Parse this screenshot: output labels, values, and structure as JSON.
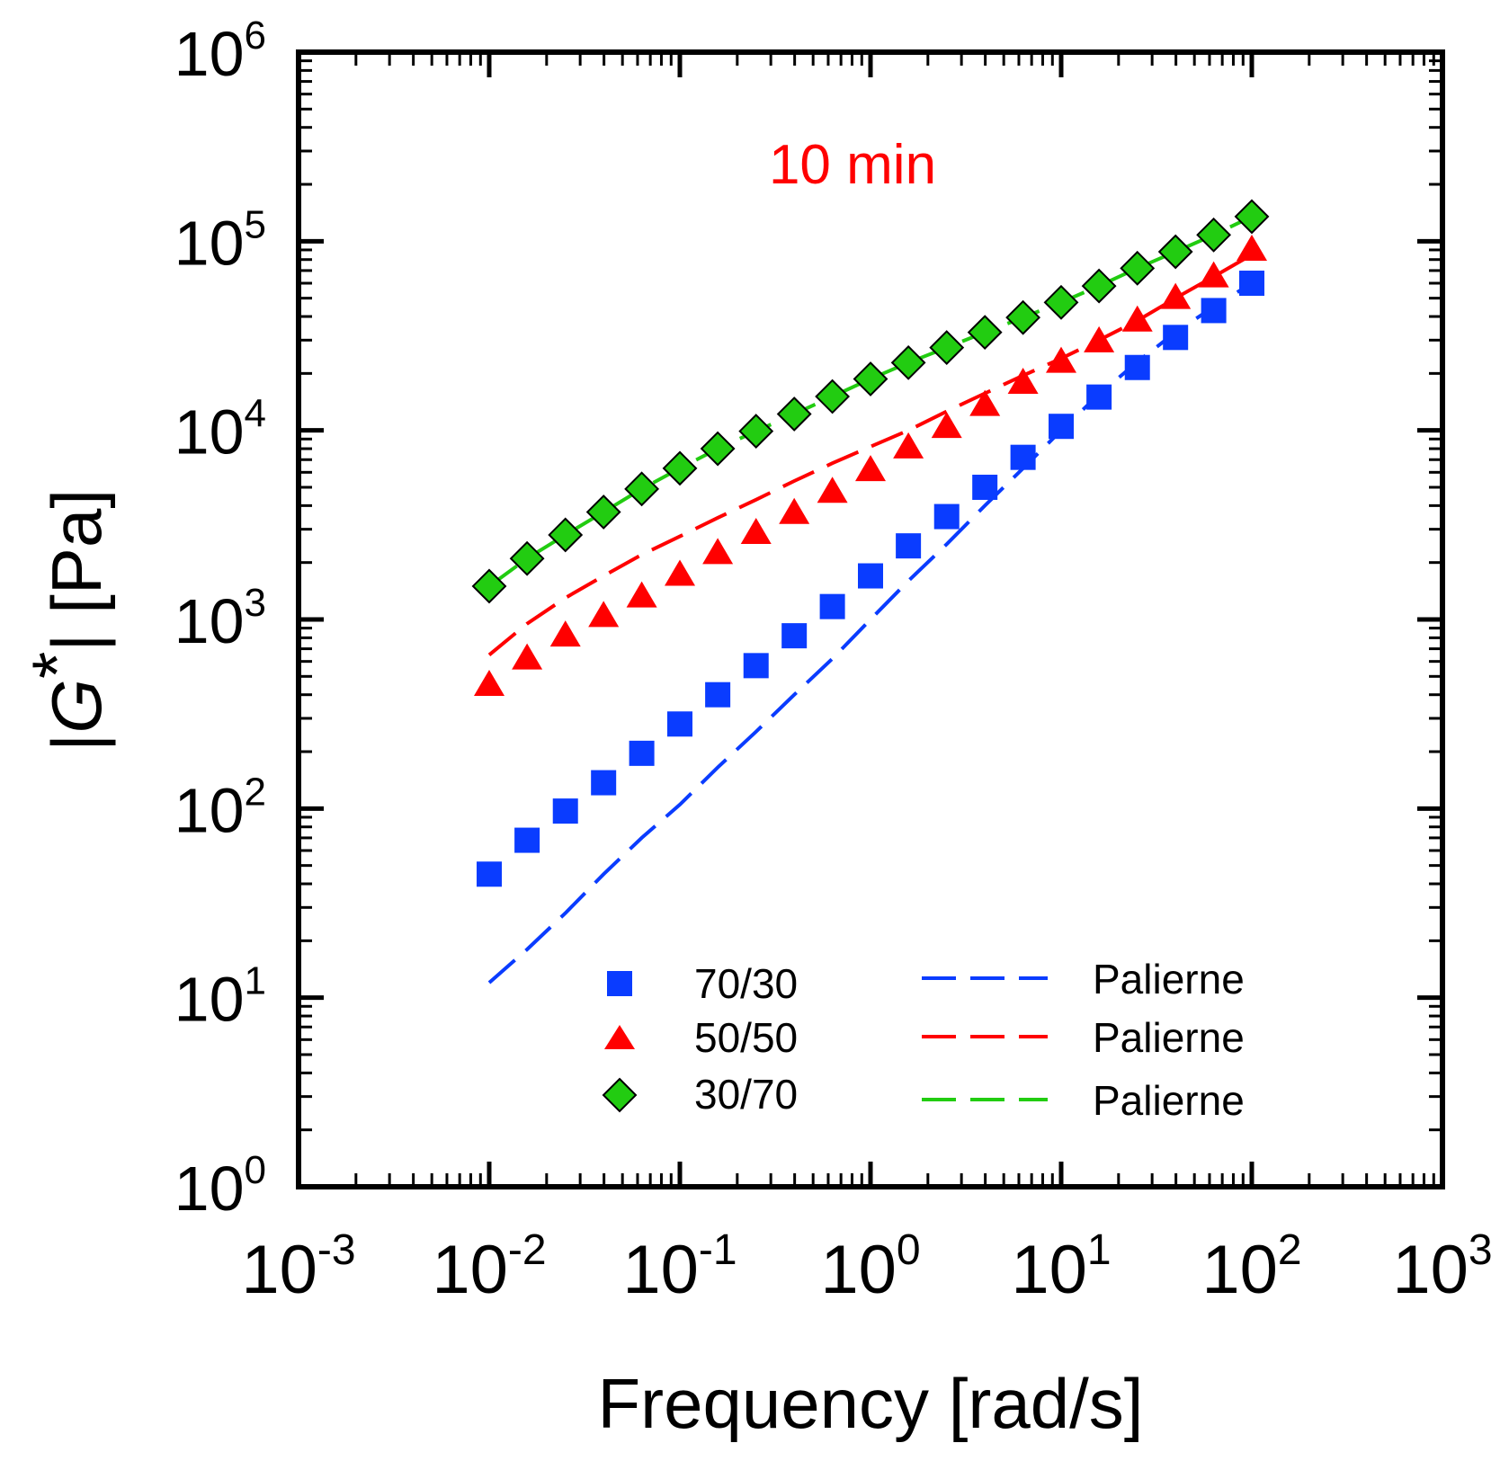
{
  "chart_data": {
    "type": "scatter",
    "title": "",
    "annotation": "10 min",
    "annotation_color": "#ff0000",
    "xlabel": "Frequency [rad/s]",
    "ylabel_prefix": "|",
    "ylabel_symbol": "G",
    "ylabel_star": "*",
    "ylabel_suffix": "| [Pa]",
    "x_scale": "log",
    "y_scale": "log",
    "xlim": [
      0.001,
      1000
    ],
    "ylim": [
      1,
      1000000
    ],
    "x_tick_labels": [
      {
        "base": "10",
        "exp": "-3"
      },
      {
        "base": "10",
        "exp": "-2"
      },
      {
        "base": "10",
        "exp": "-1"
      },
      {
        "base": "10",
        "exp": "0"
      },
      {
        "base": "10",
        "exp": "1"
      },
      {
        "base": "10",
        "exp": "2"
      },
      {
        "base": "10",
        "exp": "3"
      }
    ],
    "y_tick_labels": [
      {
        "base": "10",
        "exp": "0"
      },
      {
        "base": "10",
        "exp": "1"
      },
      {
        "base": "10",
        "exp": "2"
      },
      {
        "base": "10",
        "exp": "3"
      },
      {
        "base": "10",
        "exp": "4"
      },
      {
        "base": "10",
        "exp": "5"
      },
      {
        "base": "10",
        "exp": "6"
      }
    ],
    "x": [
      0.01,
      0.0158,
      0.0251,
      0.0398,
      0.0631,
      0.1,
      0.158,
      0.251,
      0.398,
      0.631,
      1,
      1.58,
      2.51,
      3.98,
      6.31,
      10,
      15.8,
      25.1,
      39.8,
      63.1,
      100
    ],
    "series": [
      {
        "name": "70/30",
        "marker": "square",
        "color": "#0a3cff",
        "values": [
          45,
          68,
          97,
          137,
          196,
          280,
          400,
          570,
          820,
          1170,
          1700,
          2450,
          3500,
          5000,
          7200,
          10500,
          15000,
          21500,
          31000,
          43000,
          60000
        ]
      },
      {
        "name": "50/50",
        "marker": "triangle",
        "color": "#ff0000",
        "values": [
          450,
          620,
          820,
          1040,
          1320,
          1720,
          2240,
          2860,
          3650,
          4720,
          6150,
          8100,
          10400,
          13600,
          17800,
          23000,
          29500,
          38000,
          50000,
          65000,
          90000
        ]
      },
      {
        "name": "30/70",
        "marker": "diamond",
        "color": "#22cc11",
        "values": [
          1500,
          2100,
          2800,
          3700,
          4900,
          6300,
          8000,
          9900,
          12200,
          15100,
          18700,
          22800,
          27400,
          33000,
          39500,
          47500,
          58000,
          72000,
          88000,
          108000,
          135000
        ]
      }
    ],
    "fits": [
      {
        "name": "Palierne",
        "color": "#0a3cff",
        "values": [
          12,
          18,
          28,
          45,
          70,
          105,
          165,
          255,
          400,
          620,
          1000,
          1600,
          2500,
          4000,
          6300,
          10000,
          15500,
          23000,
          33000,
          45000,
          60000
        ]
      },
      {
        "name": "Palierne",
        "color": "#ff0000",
        "values": [
          650,
          950,
          1300,
          1700,
          2200,
          2750,
          3450,
          4300,
          5400,
          6700,
          8200,
          10000,
          12600,
          15700,
          19500,
          24000,
          30000,
          38000,
          50000,
          65000,
          85000
        ]
      },
      {
        "name": "Palierne",
        "color": "#22cc11",
        "values": [
          1500,
          2100,
          2800,
          3700,
          4900,
          6300,
          8000,
          9900,
          12200,
          15100,
          18700,
          22800,
          27400,
          33000,
          39500,
          47500,
          58000,
          72000,
          88000,
          108000,
          135000
        ]
      }
    ],
    "legend_position": "bottom-center",
    "grid": false
  }
}
